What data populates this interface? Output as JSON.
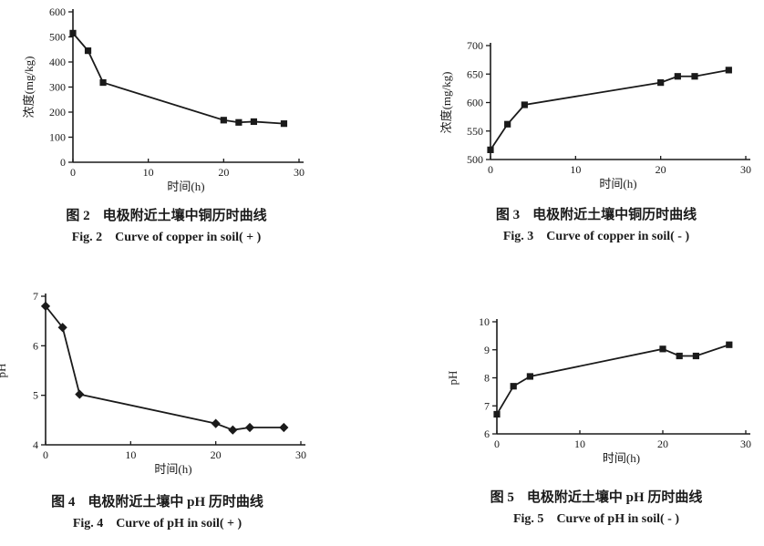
{
  "page": {
    "background": "#ffffff",
    "ink": "#1a1a1a"
  },
  "chart_data": [
    {
      "id": "fig-2",
      "type": "line",
      "caption_zh_label": "图 2",
      "caption_zh_text": "电极附近土壤中铜历时曲线",
      "caption_en_label": "Fig. 2",
      "caption_en_text": "Curve of copper in soil( + )",
      "xlabel": "时间(h)",
      "ylabel": "浓度(mg/kg)",
      "x": [
        0,
        2,
        4,
        20,
        22,
        24,
        28
      ],
      "y": [
        515,
        445,
        318,
        168,
        159,
        162,
        154
      ],
      "xlim": [
        0,
        30
      ],
      "ylim": [
        0,
        600
      ],
      "xticks": [
        0,
        10,
        20,
        30
      ],
      "yticks": [
        0,
        100,
        200,
        300,
        400,
        500,
        600
      ],
      "marker": "square",
      "line_color": "#1a1a1a",
      "grid": false,
      "legend": "none"
    },
    {
      "id": "fig-3",
      "type": "line",
      "caption_zh_label": "图 3",
      "caption_zh_text": "电极附近土壤中铜历时曲线",
      "caption_en_label": "Fig. 3",
      "caption_en_text": "Curve of copper in soil( - )",
      "xlabel": "时间(h)",
      "ylabel": "浓度(mg/kg)",
      "x": [
        0,
        2,
        4,
        20,
        22,
        24,
        28
      ],
      "y": [
        517,
        562,
        596,
        635,
        646,
        646,
        657
      ],
      "xlim": [
        0,
        30
      ],
      "ylim": [
        500,
        700
      ],
      "xticks": [
        0,
        10,
        20,
        30
      ],
      "yticks": [
        500,
        550,
        600,
        650,
        700
      ],
      "marker": "square",
      "line_color": "#1a1a1a",
      "grid": false,
      "legend": "none"
    },
    {
      "id": "fig-4",
      "type": "line",
      "caption_zh_label": "图 4",
      "caption_zh_text": "电极附近土壤中 pH 历时曲线",
      "caption_en_label": "Fig. 4",
      "caption_en_text": "Curve of pH in soil( + )",
      "xlabel": "时间(h)",
      "ylabel": "pH",
      "x": [
        0,
        2,
        4,
        20,
        22,
        24,
        28
      ],
      "y": [
        6.8,
        6.37,
        5.02,
        4.43,
        4.3,
        4.35,
        4.35
      ],
      "xlim": [
        0,
        30
      ],
      "ylim": [
        4,
        7
      ],
      "xticks": [
        0,
        10,
        20,
        30
      ],
      "yticks": [
        4,
        5,
        6,
        7
      ],
      "marker": "diamond",
      "line_color": "#1a1a1a",
      "grid": false,
      "legend": "none"
    },
    {
      "id": "fig-5",
      "type": "line",
      "caption_zh_label": "图 5",
      "caption_zh_text": "电极附近土壤中 pH 历时曲线",
      "caption_en_label": "Fig. 5",
      "caption_en_text": "Curve of pH in soil( - )",
      "xlabel": "时间(h)",
      "ylabel": "pH",
      "x": [
        0,
        2,
        4,
        20,
        22,
        24,
        28
      ],
      "y": [
        6.7,
        7.7,
        8.05,
        9.03,
        8.78,
        8.78,
        9.18
      ],
      "xlim": [
        0,
        30
      ],
      "ylim": [
        6,
        10
      ],
      "xticks": [
        0,
        10,
        20,
        30
      ],
      "yticks": [
        6,
        7,
        8,
        9,
        10
      ],
      "marker": "square",
      "line_color": "#1a1a1a",
      "grid": false,
      "legend": "none"
    }
  ]
}
